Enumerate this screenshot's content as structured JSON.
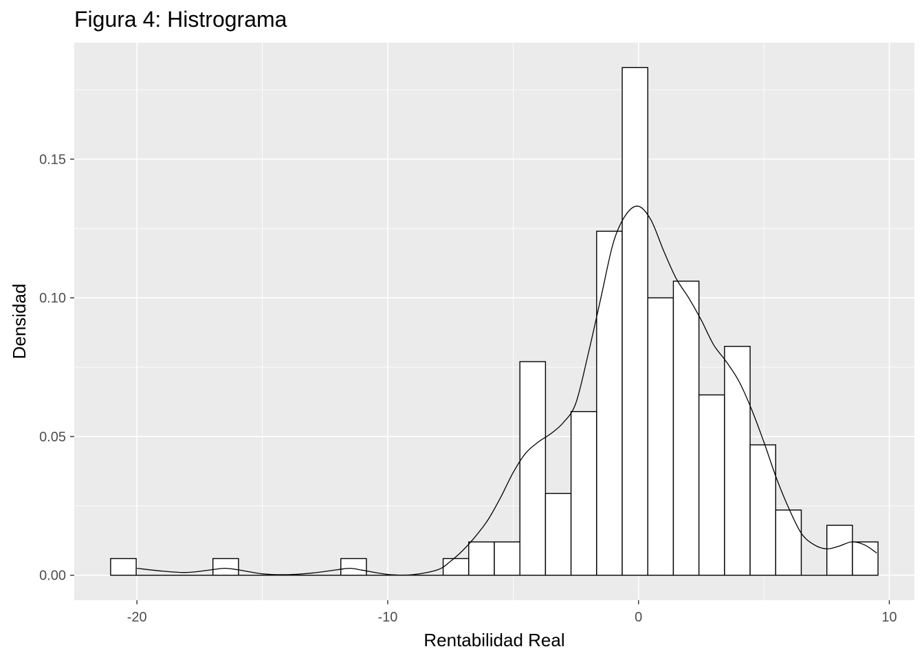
{
  "chart_data": {
    "type": "bar",
    "title": "Figura 4: Histrograma",
    "xlabel": "Rentabilidad Real",
    "ylabel": "Densidad",
    "xlim": [
      -22.5,
      11.0
    ],
    "ylim": [
      -0.009,
      0.192
    ],
    "x_ticks": [
      -20,
      -10,
      0,
      10
    ],
    "x_tick_labels": [
      "-20",
      "-10",
      "0",
      "10"
    ],
    "y_ticks": [
      0.0,
      0.05,
      0.1,
      0.15
    ],
    "y_tick_labels": [
      "0.00",
      "0.05",
      "0.10",
      "0.15"
    ],
    "grid": true,
    "panel_background": "#ebebeb",
    "grid_color": "#ffffff",
    "bar_fill": "#ffffff",
    "bar_stroke": "#000000",
    "series": [
      {
        "kind": "histogram",
        "bins": [
          {
            "x0": -21.05,
            "x1": -20.03,
            "density": 0.006
          },
          {
            "x0": -20.03,
            "x1": -19.01,
            "density": 0.0
          },
          {
            "x0": -19.01,
            "x1": -17.99,
            "density": 0.0
          },
          {
            "x0": -17.99,
            "x1": -16.97,
            "density": 0.0
          },
          {
            "x0": -16.97,
            "x1": -15.95,
            "density": 0.006
          },
          {
            "x0": -15.95,
            "x1": -14.93,
            "density": 0.0
          },
          {
            "x0": -14.93,
            "x1": -13.91,
            "density": 0.0
          },
          {
            "x0": -13.91,
            "x1": -12.89,
            "density": 0.0
          },
          {
            "x0": -12.89,
            "x1": -11.87,
            "density": 0.0
          },
          {
            "x0": -11.87,
            "x1": -10.85,
            "density": 0.006
          },
          {
            "x0": -10.85,
            "x1": -9.83,
            "density": 0.0
          },
          {
            "x0": -9.83,
            "x1": -8.81,
            "density": 0.0
          },
          {
            "x0": -8.81,
            "x1": -7.79,
            "density": 0.0
          },
          {
            "x0": -7.79,
            "x1": -6.77,
            "density": 0.006
          },
          {
            "x0": -6.77,
            "x1": -5.75,
            "density": 0.012
          },
          {
            "x0": -5.75,
            "x1": -4.73,
            "density": 0.012
          },
          {
            "x0": -4.73,
            "x1": -3.71,
            "density": 0.077
          },
          {
            "x0": -3.71,
            "x1": -2.69,
            "density": 0.0295
          },
          {
            "x0": -2.69,
            "x1": -1.67,
            "density": 0.059
          },
          {
            "x0": -1.67,
            "x1": -0.65,
            "density": 0.124
          },
          {
            "x0": -0.65,
            "x1": 0.37,
            "density": 0.183
          },
          {
            "x0": 0.37,
            "x1": 1.39,
            "density": 0.1
          },
          {
            "x0": 1.39,
            "x1": 2.41,
            "density": 0.106
          },
          {
            "x0": 2.41,
            "x1": 3.43,
            "density": 0.065
          },
          {
            "x0": 3.43,
            "x1": 4.45,
            "density": 0.0825
          },
          {
            "x0": 4.45,
            "x1": 5.47,
            "density": 0.047
          },
          {
            "x0": 5.47,
            "x1": 6.49,
            "density": 0.0235
          },
          {
            "x0": 6.49,
            "x1": 7.51,
            "density": 0.0
          },
          {
            "x0": 7.51,
            "x1": 8.53,
            "density": 0.018
          },
          {
            "x0": 8.53,
            "x1": 9.55,
            "density": 0.012
          }
        ]
      },
      {
        "kind": "density",
        "x": [
          -20.0,
          -19.0,
          -18.0,
          -17.0,
          -16.5,
          -16.0,
          -15.0,
          -14.0,
          -13.0,
          -12.0,
          -11.5,
          -11.0,
          -10.0,
          -9.0,
          -8.0,
          -7.5,
          -7.0,
          -6.5,
          -6.0,
          -5.5,
          -5.0,
          -4.5,
          -4.0,
          -3.5,
          -3.0,
          -2.5,
          -2.0,
          -1.5,
          -1.0,
          -0.5,
          0.0,
          0.5,
          1.0,
          1.5,
          2.0,
          2.5,
          3.0,
          3.5,
          4.0,
          4.5,
          5.0,
          5.5,
          6.0,
          6.5,
          7.0,
          7.5,
          8.0,
          8.5,
          9.0,
          9.5
        ],
        "y": [
          0.0025,
          0.0015,
          0.001,
          0.002,
          0.0025,
          0.002,
          0.0005,
          0.0002,
          0.0008,
          0.002,
          0.0025,
          0.0018,
          0.0003,
          0.0002,
          0.002,
          0.005,
          0.009,
          0.014,
          0.02,
          0.028,
          0.037,
          0.044,
          0.048,
          0.051,
          0.055,
          0.062,
          0.08,
          0.1,
          0.12,
          0.13,
          0.133,
          0.128,
          0.117,
          0.107,
          0.1,
          0.092,
          0.083,
          0.077,
          0.07,
          0.06,
          0.048,
          0.035,
          0.024,
          0.015,
          0.011,
          0.0095,
          0.0105,
          0.012,
          0.011,
          0.008
        ]
      }
    ]
  }
}
